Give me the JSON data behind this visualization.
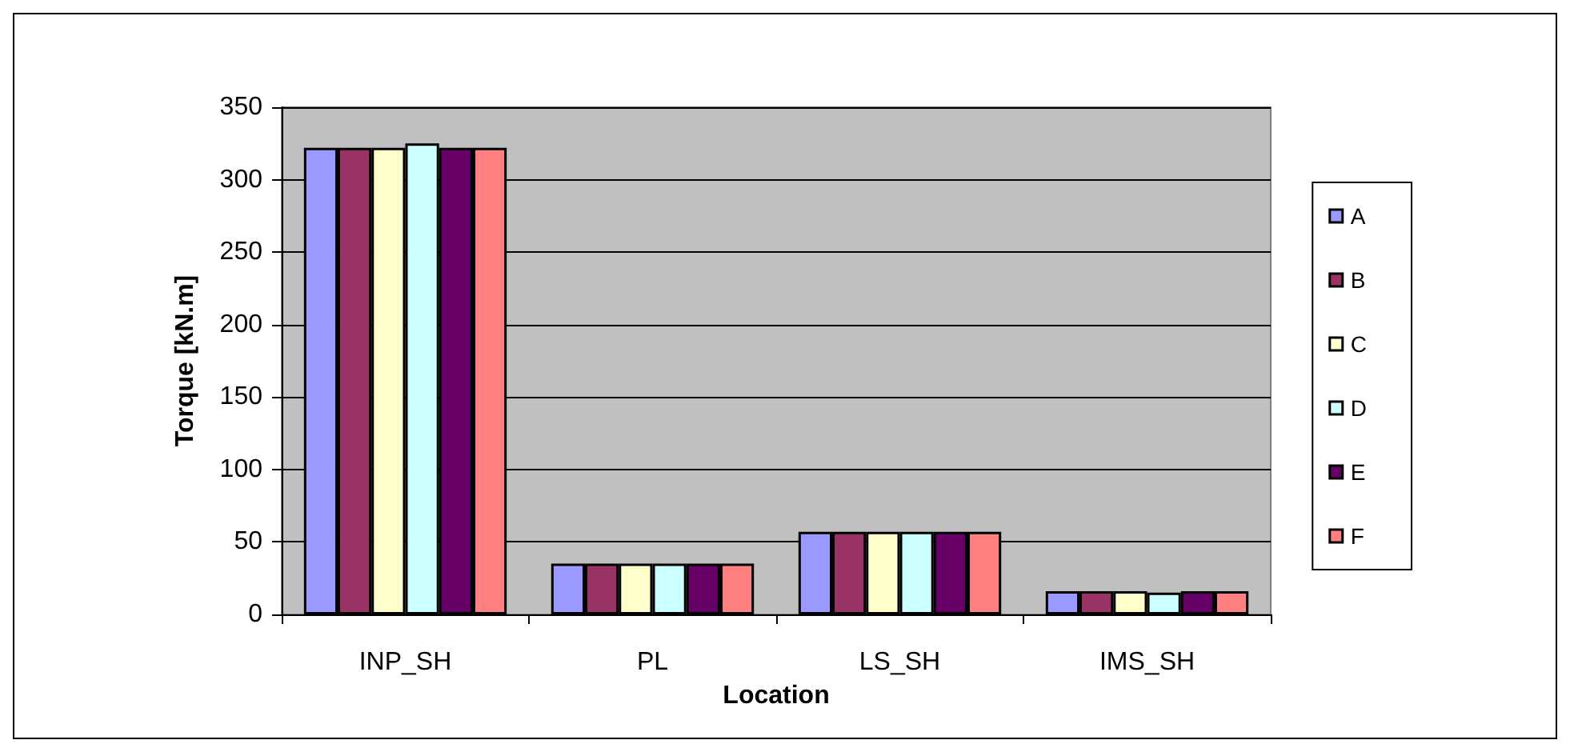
{
  "chart_data": {
    "type": "bar",
    "xlabel": "Location",
    "ylabel": "Torque [kN.m]",
    "categories": [
      "INP_SH",
      "PL",
      "LS_SH",
      "IMS_SH"
    ],
    "series": [
      {
        "name": "A",
        "color": "#9999ff",
        "values": [
          322,
          35,
          57,
          16
        ]
      },
      {
        "name": "B",
        "color": "#993366",
        "values": [
          322,
          35,
          57,
          16
        ]
      },
      {
        "name": "C",
        "color": "#ffffcc",
        "values": [
          322,
          35,
          57,
          16
        ]
      },
      {
        "name": "D",
        "color": "#ccffff",
        "values": [
          325,
          35,
          57,
          15
        ]
      },
      {
        "name": "E",
        "color": "#660066",
        "values": [
          322,
          35,
          57,
          16
        ]
      },
      {
        "name": "F",
        "color": "#ff8080",
        "values": [
          322,
          35,
          57,
          16
        ]
      }
    ],
    "ylim": [
      0,
      350
    ],
    "yticks": [
      0,
      50,
      100,
      150,
      200,
      250,
      300,
      350
    ],
    "grid": "y",
    "legend": "right"
  }
}
